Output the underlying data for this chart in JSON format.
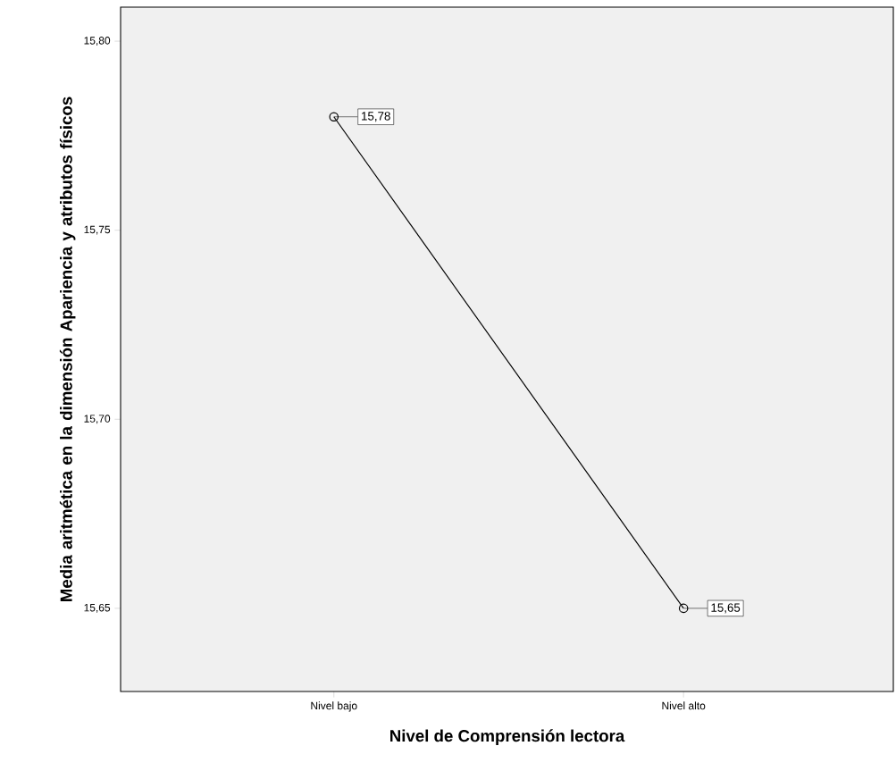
{
  "chart_data": {
    "type": "line",
    "xlabel": "Nivel de Comprensión lectora",
    "ylabel": "Media aritmética en la dimensión Apariencia y atributos físicos",
    "categories": [
      "Nivel bajo",
      "Nivel alto"
    ],
    "values": [
      15.78,
      15.65
    ],
    "value_labels": [
      "15,78",
      "15,65"
    ],
    "color": "#000000",
    "marker": "circle",
    "ylim": [
      15.628,
      15.809
    ],
    "yticks": [
      {
        "value": 15.65,
        "label": "15,65"
      },
      {
        "value": 15.7,
        "label": "15,70"
      },
      {
        "value": 15.75,
        "label": "15,75"
      },
      {
        "value": 15.8,
        "label": "15,80"
      }
    ],
    "grid": false
  }
}
